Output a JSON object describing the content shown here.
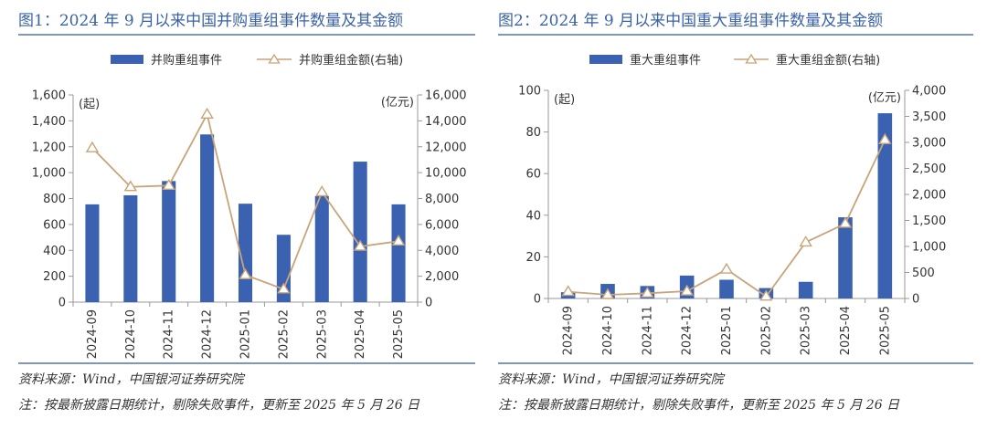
{
  "colors": {
    "bar": "#3a62b0",
    "line": "#c8a47a",
    "title": "#3a62a8",
    "axis": "#999999",
    "text": "#333333"
  },
  "source": "资料来源：Wind，中国银河证券研究院",
  "note": "注：按最新披露日期统计，剔除失败事件，更新至 2025 年 5 月 26 日",
  "chart_data": [
    {
      "type": "bar",
      "title": "图1：2024 年 9 月以来中国并购重组事件数量及其金额",
      "categories": [
        "2024-09",
        "2024-10",
        "2024-11",
        "2024-12",
        "2025-01",
        "2025-02",
        "2025-03",
        "2025-04",
        "2025-05"
      ],
      "left_unit": "(起)",
      "right_unit": "(亿元)",
      "ylim": [
        0,
        1600
      ],
      "y_ticks": [
        "0",
        "200",
        "400",
        "600",
        "800",
        "1,000",
        "1,200",
        "1,400",
        "1,600"
      ],
      "y2lim": [
        0,
        16000
      ],
      "y2_ticks": [
        "0",
        "2,000",
        "4,000",
        "6,000",
        "8,000",
        "10,000",
        "12,000",
        "14,000",
        "16,000"
      ],
      "series": [
        {
          "name": "并购重组事件",
          "type": "bar",
          "axis": "left",
          "values": [
            755,
            825,
            935,
            1295,
            760,
            520,
            820,
            1085,
            755
          ]
        },
        {
          "name": "并购重组金额(右轴)",
          "type": "line",
          "axis": "right",
          "values": [
            11900,
            8900,
            9000,
            14500,
            2100,
            1000,
            8500,
            4300,
            4700
          ]
        }
      ]
    },
    {
      "type": "bar",
      "title": "图2：2024 年 9 月以来中国重大重组事件数量及其金额",
      "categories": [
        "2024-09",
        "2024-10",
        "2024-11",
        "2024-12",
        "2025-01",
        "2025-02",
        "2025-03",
        "2025-04",
        "2025-05"
      ],
      "left_unit": "(起)",
      "right_unit": "(亿元)",
      "ylim": [
        0,
        100
      ],
      "y_ticks": [
        "0",
        "20",
        "40",
        "60",
        "80",
        "100"
      ],
      "y2lim": [
        0,
        4000
      ],
      "y2_ticks": [
        "0",
        "500",
        "1,000",
        "1,500",
        "2,000",
        "2,500",
        "3,000",
        "3,500",
        "4,000"
      ],
      "series": [
        {
          "name": "重大重组事件",
          "type": "bar",
          "axis": "left",
          "values": [
            3,
            7,
            6,
            11,
            9,
            5,
            8,
            39,
            89
          ]
        },
        {
          "name": "重大重组金额(右轴)",
          "type": "line",
          "axis": "right",
          "values": [
            130,
            70,
            100,
            140,
            560,
            40,
            1080,
            1440,
            3050
          ]
        }
      ]
    }
  ]
}
